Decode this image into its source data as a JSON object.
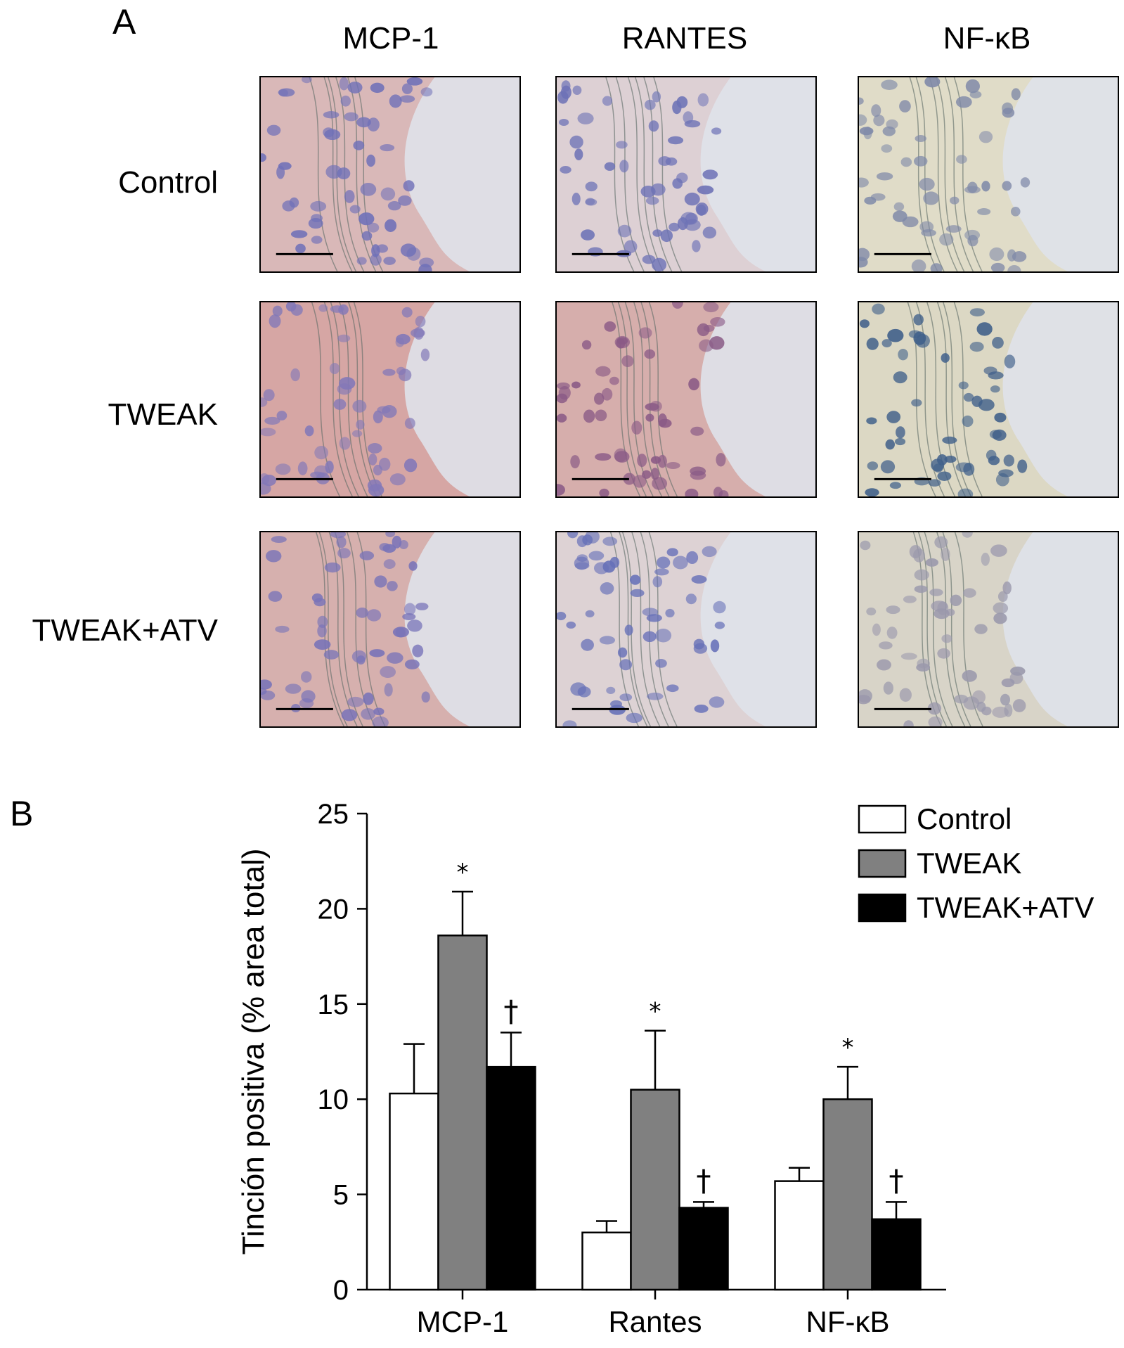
{
  "panel_a": {
    "letter": "A",
    "columns": [
      "MCP-1",
      "RANTES",
      "NF-κB"
    ],
    "rows": [
      "Control",
      "TWEAK",
      "TWEAK+ATV"
    ]
  },
  "panel_b": {
    "letter": "B"
  },
  "chart_data": {
    "type": "bar",
    "categories": [
      "MCP-1",
      "Rantes",
      "NF-κB"
    ],
    "ylabel": "Tinción positiva (% area total)",
    "xlabel": "",
    "ylim": [
      0,
      25
    ],
    "yticks": [
      0,
      5,
      10,
      15,
      20,
      25
    ],
    "grid": false,
    "legend_position": "top-right",
    "series": [
      {
        "name": "Control",
        "color": "#ffffff",
        "values": [
          10.3,
          3.0,
          5.7
        ],
        "errors": [
          2.6,
          0.6,
          0.7
        ],
        "markers": [
          "",
          "",
          ""
        ]
      },
      {
        "name": "TWEAK",
        "color": "#808080",
        "values": [
          18.6,
          10.5,
          10.0
        ],
        "errors": [
          2.3,
          3.1,
          1.7
        ],
        "markers": [
          "*",
          "*",
          "*"
        ]
      },
      {
        "name": "TWEAK+ATV",
        "color": "#000000",
        "values": [
          11.7,
          4.3,
          3.7
        ],
        "errors": [
          1.8,
          0.3,
          0.9
        ],
        "markers": [
          "†",
          "†",
          "†"
        ]
      }
    ]
  }
}
